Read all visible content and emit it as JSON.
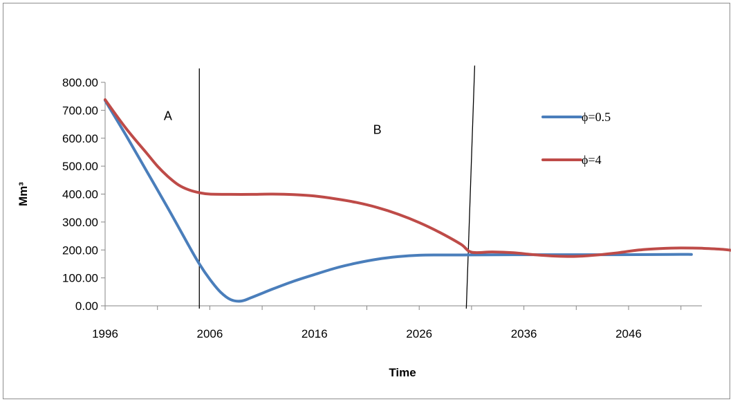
{
  "chart_data": {
    "type": "line",
    "title": "",
    "xlabel": "Time",
    "ylabel": "Mm³",
    "xlim": [
      1996,
      2053
    ],
    "ylim": [
      0,
      800
    ],
    "x_ticks": [
      1996,
      2006,
      2016,
      2026,
      2036,
      2046
    ],
    "y_ticks": [
      "0.00",
      "100.00",
      "200.00",
      "300.00",
      "400.00",
      "500.00",
      "600.00",
      "700.00",
      "800.00"
    ],
    "grid": false,
    "legend_position": "right",
    "series": [
      {
        "name": "ϕ=0.5",
        "color": "#4a7ebb",
        "points": [
          [
            1996,
            735
          ],
          [
            1998,
            610
          ],
          [
            2000,
            480
          ],
          [
            2002,
            350
          ],
          [
            2004,
            215
          ],
          [
            2005,
            150
          ],
          [
            2006,
            95
          ],
          [
            2007,
            50
          ],
          [
            2008,
            22
          ],
          [
            2009,
            17
          ],
          [
            2010,
            30
          ],
          [
            2012,
            60
          ],
          [
            2014,
            88
          ],
          [
            2016,
            112
          ],
          [
            2018,
            135
          ],
          [
            2020,
            153
          ],
          [
            2022,
            167
          ],
          [
            2024,
            176
          ],
          [
            2026,
            181
          ],
          [
            2028,
            182
          ],
          [
            2030,
            182
          ],
          [
            2035,
            183
          ],
          [
            2040,
            183
          ],
          [
            2045,
            183
          ],
          [
            2050,
            184
          ],
          [
            2052,
            184
          ]
        ]
      },
      {
        "name": "ϕ=4",
        "color": "#be4b48",
        "points": [
          [
            1996,
            738
          ],
          [
            1998,
            635
          ],
          [
            2000,
            545
          ],
          [
            2001,
            500
          ],
          [
            2002,
            463
          ],
          [
            2003,
            433
          ],
          [
            2004,
            415
          ],
          [
            2005,
            405
          ],
          [
            2006,
            400
          ],
          [
            2008,
            399
          ],
          [
            2010,
            399
          ],
          [
            2012,
            400
          ],
          [
            2014,
            398
          ],
          [
            2016,
            393
          ],
          [
            2018,
            383
          ],
          [
            2020,
            370
          ],
          [
            2022,
            352
          ],
          [
            2024,
            328
          ],
          [
            2026,
            298
          ],
          [
            2028,
            262
          ],
          [
            2030,
            220
          ],
          [
            2031,
            192
          ],
          [
            2033,
            193
          ],
          [
            2035,
            190
          ],
          [
            2037,
            183
          ],
          [
            2039,
            178
          ],
          [
            2041,
            177
          ],
          [
            2043,
            182
          ],
          [
            2045,
            190
          ],
          [
            2047,
            200
          ],
          [
            2049,
            205
          ],
          [
            2051,
            207
          ],
          [
            2053,
            206
          ],
          [
            2055,
            202
          ],
          [
            2057,
            193
          ]
        ]
      }
    ],
    "annotations": [
      {
        "text": "A",
        "x": 2002,
        "y": 665
      },
      {
        "text": "B",
        "x": 2022,
        "y": 615
      }
    ],
    "vertical_lines": [
      {
        "x1": 2005.0,
        "y1": 850,
        "x2": 2005.0,
        "y2": -10
      },
      {
        "x1": 2031.3,
        "y1": 860,
        "x2": 2030.5,
        "y2": -10
      }
    ]
  }
}
